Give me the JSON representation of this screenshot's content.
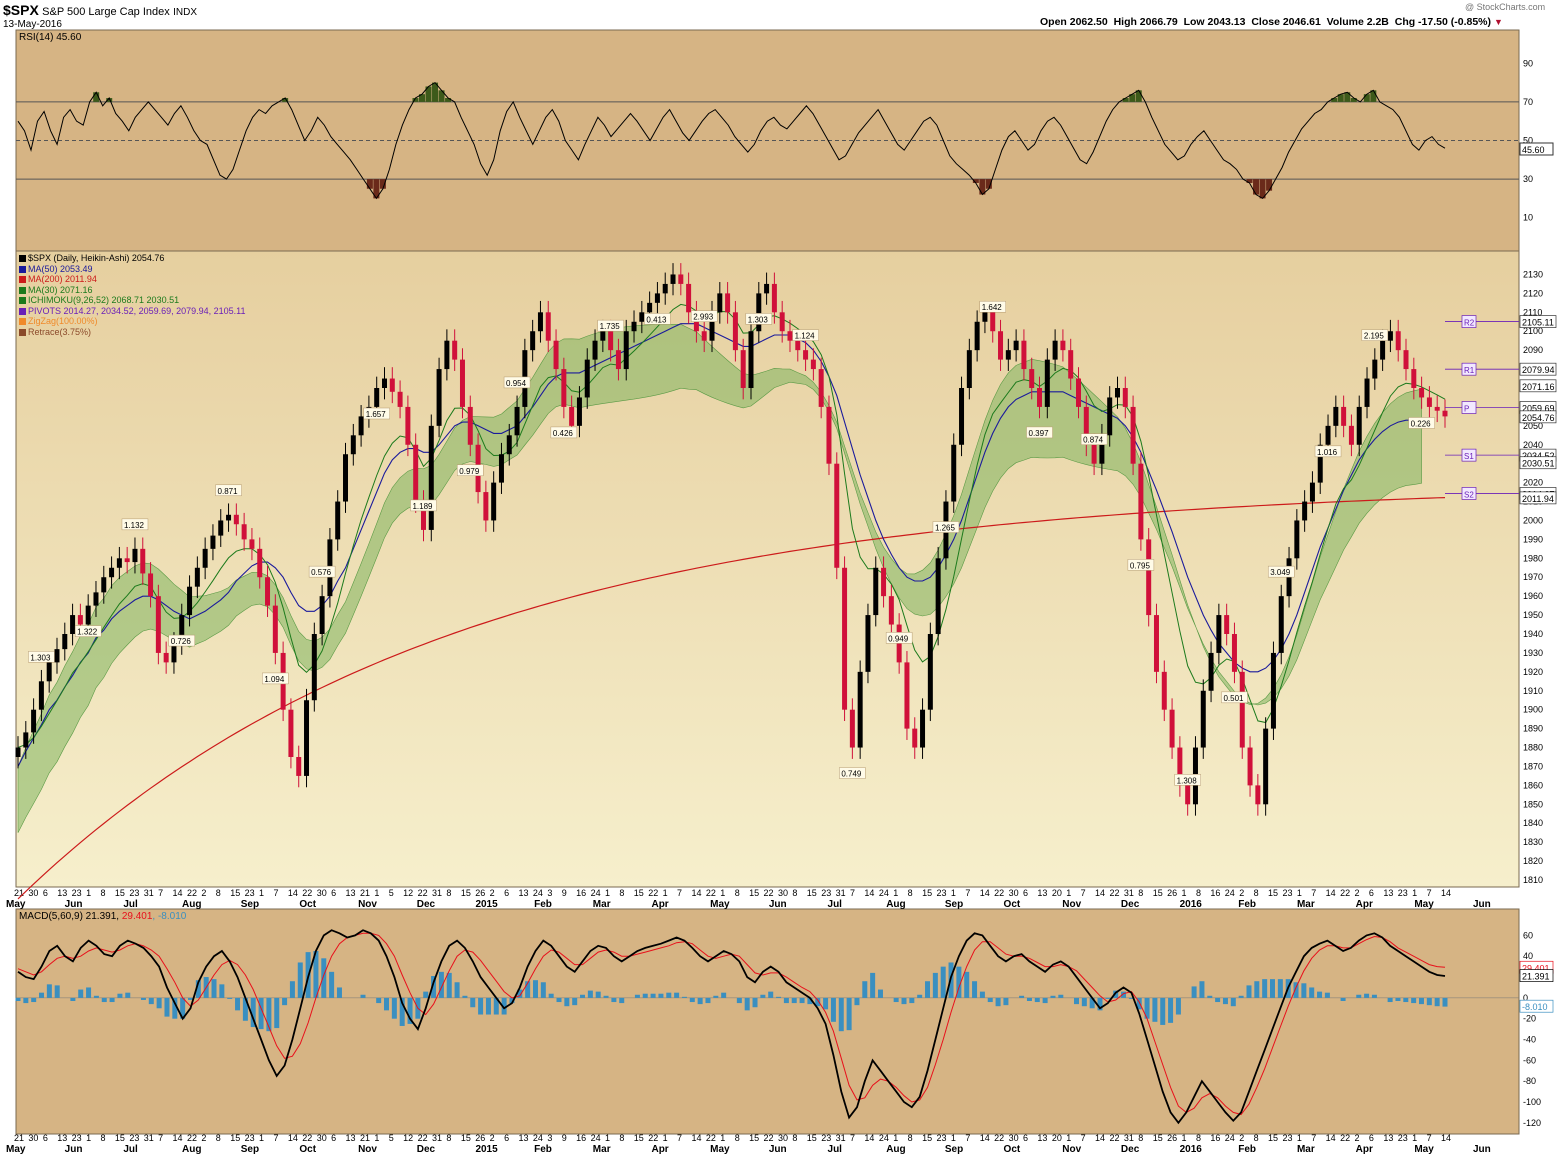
{
  "header": {
    "symbol": "$SPX",
    "name": "S&P 500 Large Cap Index",
    "exchange": "INDX",
    "date": "13-May-2016",
    "open": "Open 2062.50",
    "high": "High 2066.79",
    "low": "Low 2043.13",
    "close": "Close 2046.61",
    "volume": "Volume 2.2B",
    "chg": "Chg -17.50 (-0.85%)",
    "watermark": "@ StockCharts.com"
  },
  "colors": {
    "panel_bg": "#d6b484",
    "price_bg_top": "#e7cfa0",
    "price_bg_bottom": "#f5ecc6",
    "candle_up": "#000000",
    "candle_down": "#d0103a",
    "ma50": "#1a1a9c",
    "ma200": "#cc1b1b",
    "ma30": "#1c7a1c",
    "cloud_green": "#7fb55f",
    "cloud_red": "#e8908a",
    "pivots": "#6a1fb8",
    "zigzag": "#f08a2a",
    "retrace": "#8b4a2a",
    "macd_line": "#000000",
    "signal_line": "#e8101b",
    "histogram": "#3a8fc0"
  },
  "rsi_panel": {
    "label": "RSI(14) 45.60",
    "last_value": "45.60",
    "y_ticks": [
      "90",
      "70",
      "50",
      "30",
      "10"
    ]
  },
  "legend": [
    {
      "text": "$SPX (Daily, Heikin-Ashi) 2054.76",
      "color": "#000000"
    },
    {
      "text": "MA(50) 2053.49",
      "color": "#1a1a9c"
    },
    {
      "text": "MA(200) 2011.94",
      "color": "#cc1b1b"
    },
    {
      "text": "MA(30) 2071.16",
      "color": "#1c7a1c"
    },
    {
      "text": "ICHIMOKU(9,26,52) 2068.71 2030.51",
      "color": "#1c7a1c"
    },
    {
      "text": "PIVOTS 2014.27, 2034.52, 2059.69, 2079.94, 2105.11",
      "color": "#6a1fb8"
    },
    {
      "text": "ZigZag(100.00%)",
      "color": "#f08a2a"
    },
    {
      "text": "Retrace(3.75%)",
      "color": "#8b4a2a"
    }
  ],
  "price_y_ticks": [
    "2130",
    "2120",
    "2110",
    "2100",
    "2090",
    "2080",
    "2070",
    "2060",
    "2050",
    "2040",
    "2030",
    "2020",
    "2010",
    "2000",
    "1990",
    "1980",
    "1970",
    "1960",
    "1950",
    "1940",
    "1930",
    "1920",
    "1910",
    "1900",
    "1890",
    "1880",
    "1870",
    "1860",
    "1850",
    "1840",
    "1830",
    "1820",
    "1810"
  ],
  "price_tags": [
    "2105.11",
    "2079.94",
    "2071.16",
    "2059.69",
    "2054.76",
    "2034.52",
    "2030.51",
    "2014.27",
    "2011.94"
  ],
  "pivot_labels": [
    "R2",
    "R1",
    "P",
    "S1",
    "S2"
  ],
  "retrace_labels": [
    "1.303",
    "1.322",
    "1.132",
    "0.726",
    "0.871",
    "1.094",
    "0.576",
    "1.657",
    "1.189",
    "0.979",
    "0.954",
    "0.426",
    "1.735",
    "0.413",
    "2.993",
    "1.303",
    "1.124",
    "0.749",
    "0.949",
    "1.265",
    "1.642",
    "0.397",
    "0.874",
    "0.795",
    "1.308",
    "0.501",
    "3.049",
    "1.016",
    "2.195",
    "0.226"
  ],
  "x_axis": {
    "day_ticks": [
      "21",
      "30",
      "6",
      "13",
      "23",
      "1",
      "8",
      "15",
      "23",
      "31",
      "7",
      "14",
      "22",
      "2",
      "8",
      "15",
      "23",
      "1",
      "7",
      "14",
      "22",
      "30",
      "6",
      "13",
      "21",
      "1",
      "5",
      "12",
      "22",
      "31",
      "8",
      "15",
      "26",
      "2",
      "6",
      "13",
      "24",
      "3",
      "9",
      "16",
      "24",
      "1",
      "8",
      "15",
      "22",
      "1",
      "7",
      "14",
      "22",
      "1",
      "8",
      "15",
      "22",
      "30",
      "8",
      "15",
      "23",
      "31",
      "7",
      "14",
      "24",
      "1",
      "8",
      "15",
      "23",
      "1",
      "7",
      "14",
      "22",
      "30",
      "6",
      "13",
      "20",
      "1",
      "7",
      "14",
      "22",
      "31",
      "8",
      "15",
      "26",
      "1",
      "8",
      "16",
      "24",
      "2",
      "8",
      "15",
      "23",
      "1",
      "7",
      "14",
      "22",
      "2",
      "6",
      "13",
      "23",
      "1",
      "7",
      "14"
    ],
    "month_labels": [
      "May",
      "Jun",
      "Jul",
      "Aug",
      "Sep",
      "Oct",
      "Nov",
      "Dec",
      "2015",
      "Feb",
      "Mar",
      "Apr",
      "May",
      "Jun",
      "Jul",
      "Aug",
      "Sep",
      "Oct",
      "Nov",
      "Dec",
      "2016",
      "Feb",
      "Mar",
      "Apr",
      "May",
      "Jun"
    ]
  },
  "macd_panel": {
    "label": "MACD(5,60,9) 21.391, 29.401, -8.010",
    "label_parts": [
      "MACD(5,60,9) 21.391, ",
      "29.401",
      ", -8.010"
    ],
    "y_ticks": [
      "60",
      "40",
      "20",
      "0",
      "-20",
      "-40",
      "-60",
      "-80",
      "-100",
      "-120"
    ],
    "tags": [
      "29.401",
      "21.391",
      "-8.010"
    ]
  },
  "chart_data": [
    {
      "type": "line",
      "title": "RSI(14)",
      "ylim": [
        0,
        100
      ],
      "last": 45.6,
      "reference_lines": [
        70,
        50,
        30
      ],
      "x_start": "2014-05-21",
      "x_end": "2016-05-13",
      "values": [
        60,
        55,
        45,
        60,
        65,
        55,
        48,
        62,
        66,
        60,
        58,
        70,
        75,
        68,
        72,
        64,
        60,
        55,
        62,
        66,
        70,
        66,
        62,
        58,
        64,
        68,
        62,
        55,
        50,
        48,
        40,
        32,
        30,
        35,
        45,
        55,
        62,
        66,
        64,
        68,
        70,
        72,
        66,
        58,
        50,
        55,
        62,
        58,
        52,
        48,
        44,
        40,
        35,
        30,
        25,
        20,
        25,
        35,
        48,
        58,
        66,
        72,
        74,
        78,
        80,
        76,
        72,
        70,
        62,
        55,
        48,
        38,
        32,
        40,
        55,
        65,
        70,
        62,
        55,
        48,
        55,
        62,
        66,
        60,
        50,
        45,
        40,
        48,
        55,
        62,
        58,
        52,
        56,
        60,
        64,
        60,
        55,
        50,
        56,
        62,
        66,
        60,
        54,
        50,
        55,
        60,
        64,
        66,
        62,
        58,
        52,
        48,
        44,
        48,
        55,
        60,
        62,
        58,
        56,
        60,
        64,
        68,
        64,
        58,
        52,
        46,
        40,
        42,
        48,
        54,
        58,
        62,
        66,
        60,
        54,
        48,
        45,
        50,
        55,
        60,
        62,
        58,
        50,
        42,
        38,
        35,
        32,
        28,
        22,
        25,
        35,
        45,
        52,
        55,
        50,
        45,
        48,
        55,
        60,
        62,
        58,
        52,
        46,
        40,
        38,
        44,
        52,
        60,
        66,
        70,
        72,
        74,
        76,
        70,
        62,
        55,
        48,
        44,
        40,
        42,
        48,
        52,
        55,
        50,
        45,
        40,
        38,
        35,
        30,
        28,
        22,
        20,
        24,
        30,
        36,
        44,
        50,
        56,
        60,
        64,
        66,
        70,
        72,
        74,
        75,
        72,
        70,
        74,
        76,
        70,
        68,
        66,
        62,
        55,
        48,
        45,
        50,
        52,
        48,
        46
      ]
    },
    {
      "type": "line",
      "title": "$SPX (Daily, Heikin-Ashi)",
      "ylim": [
        1810,
        2135
      ],
      "last": 2054.76,
      "x_start": "2014-05-21",
      "x_end": "2016-05-13",
      "close": [
        1880,
        1888,
        1900,
        1915,
        1925,
        1932,
        1940,
        1950,
        1945,
        1955,
        1962,
        1970,
        1975,
        1980,
        1978,
        1985,
        1972,
        1960,
        1930,
        1925,
        1935,
        1950,
        1965,
        1975,
        1985,
        1992,
        2000,
        2003,
        1998,
        1990,
        1985,
        1970,
        1955,
        1930,
        1900,
        1875,
        1865,
        1905,
        1940,
        1960,
        1990,
        2010,
        2035,
        2045,
        2055,
        2060,
        2070,
        2075,
        2068,
        2060,
        2040,
        2010,
        1995,
        2050,
        2080,
        2095,
        2085,
        2060,
        2040,
        2015,
        2000,
        2020,
        2035,
        2045,
        2060,
        2090,
        2100,
        2110,
        2095,
        2080,
        2060,
        2050,
        2065,
        2085,
        2095,
        2100,
        2090,
        2080,
        2100,
        2105,
        2110,
        2115,
        2120,
        2125,
        2130,
        2125,
        2110,
        2100,
        2095,
        2110,
        2120,
        2110,
        2090,
        2070,
        2100,
        2120,
        2125,
        2110,
        2100,
        2095,
        2090,
        2085,
        2080,
        2060,
        2030,
        1975,
        1900,
        1880,
        1920,
        1950,
        1975,
        1960,
        1945,
        1925,
        1890,
        1880,
        1900,
        1940,
        1980,
        2010,
        2040,
        2070,
        2090,
        2105,
        2110,
        2100,
        2085,
        2090,
        2095,
        2080,
        2070,
        2060,
        2085,
        2095,
        2090,
        2075,
        2060,
        2040,
        2030,
        2045,
        2065,
        2070,
        2060,
        2030,
        1990,
        1950,
        1920,
        1900,
        1880,
        1860,
        1850,
        1880,
        1910,
        1930,
        1950,
        1940,
        1920,
        1880,
        1860,
        1850,
        1890,
        1930,
        1960,
        1980,
        2000,
        2010,
        2020,
        2040,
        2050,
        2060,
        2050,
        2040,
        2060,
        2075,
        2085,
        2095,
        2100,
        2090,
        2080,
        2070,
        2065,
        2060,
        2058,
        2055
      ],
      "ma50": [
        1870,
        1878,
        1885,
        1892,
        1900,
        1905,
        1912,
        1918,
        1925,
        1930,
        1938,
        1942,
        1948,
        1952,
        1955,
        1958,
        1960,
        1960,
        1958,
        1955,
        1952,
        1950,
        1948,
        1950,
        1952,
        1955,
        1958,
        1962,
        1968,
        1972,
        1976,
        1978,
        1978,
        1975,
        1970,
        1962,
        1955,
        1952,
        1952,
        1955,
        1960,
        1968,
        1975,
        1985,
        1995,
        2005,
        2015,
        2025,
        2032,
        2036,
        2038,
        2038,
        2036,
        2036,
        2040,
        2045,
        2050,
        2052,
        2052,
        2050,
        2048,
        2046,
        2046,
        2048,
        2050,
        2055,
        2060,
        2066,
        2072,
        2076,
        2078,
        2078,
        2078,
        2080,
        2082,
        2084,
        2086,
        2088,
        2090,
        2092,
        2094,
        2096,
        2098,
        2100,
        2102,
        2104,
        2104,
        2104,
        2102,
        2100,
        2098,
        2096,
        2094,
        2092,
        2092,
        2094,
        2096,
        2098,
        2098,
        2098,
        2096,
        2094,
        2090,
        2084,
        2076,
        2066,
        2052,
        2038,
        2024,
        2012,
        2000,
        1990,
        1982,
        1975,
        1970,
        1968,
        1968,
        1970,
        1975,
        1982,
        1990,
        2000,
        2012,
        2024,
        2036,
        2046,
        2054,
        2060,
        2064,
        2066,
        2068,
        2068,
        2068,
        2068,
        2068,
        2066,
        2064,
        2062,
        2060,
        2058,
        2056,
        2054,
        2050,
        2044,
        2036,
        2026,
        2016,
        2005,
        1994,
        1982,
        1970,
        1960,
        1950,
        1942,
        1935,
        1930,
        1925,
        1922,
        1920,
        1920,
        1922,
        1926,
        1932,
        1940,
        1950,
        1962,
        1974,
        1986,
        1996,
        2006,
        2016,
        2024,
        2032,
        2038,
        2043,
        2047,
        2050,
        2052,
        2053,
        2053,
        2053
      ]
    },
    {
      "type": "bar",
      "title": "MACD(5,60,9)",
      "ylim": [
        -125,
        70
      ],
      "macd": 21.391,
      "signal": 29.401,
      "histogram": -8.01,
      "x_start": "2014-05-21",
      "x_end": "2016-05-13",
      "macd_values": [
        25,
        20,
        18,
        30,
        45,
        50,
        40,
        35,
        48,
        55,
        50,
        42,
        40,
        50,
        55,
        52,
        48,
        40,
        30,
        10,
        -5,
        -20,
        -10,
        15,
        30,
        40,
        45,
        35,
        20,
        0,
        -20,
        -40,
        -60,
        -75,
        -65,
        -40,
        -10,
        20,
        45,
        60,
        65,
        62,
        58,
        60,
        65,
        62,
        55,
        40,
        20,
        -5,
        -20,
        -30,
        -10,
        15,
        35,
        50,
        55,
        48,
        35,
        20,
        10,
        0,
        -10,
        -5,
        10,
        30,
        45,
        55,
        50,
        40,
        30,
        25,
        35,
        45,
        50,
        48,
        40,
        35,
        40,
        45,
        48,
        50,
        52,
        55,
        58,
        55,
        48,
        40,
        35,
        40,
        45,
        42,
        35,
        20,
        15,
        25,
        30,
        25,
        15,
        10,
        5,
        0,
        -10,
        -25,
        -55,
        -90,
        -115,
        -105,
        -80,
        -60,
        -70,
        -80,
        -90,
        -100,
        -105,
        -95,
        -70,
        -40,
        -10,
        20,
        40,
        55,
        62,
        60,
        50,
        40,
        35,
        40,
        42,
        35,
        30,
        25,
        32,
        35,
        30,
        20,
        10,
        0,
        -10,
        -5,
        5,
        10,
        5,
        -15,
        -40,
        -65,
        -90,
        -110,
        -120,
        -110,
        -95,
        -80,
        -90,
        -100,
        -110,
        -118,
        -110,
        -90,
        -70,
        -50,
        -30,
        -10,
        10,
        25,
        40,
        48,
        52,
        55,
        50,
        45,
        48,
        55,
        60,
        62,
        58,
        50,
        45,
        40,
        35,
        30,
        25,
        22,
        21
      ],
      "signal_values": [
        28,
        25,
        22,
        25,
        32,
        38,
        40,
        38,
        40,
        45,
        48,
        46,
        44,
        46,
        50,
        52,
        50,
        46,
        40,
        28,
        15,
        0,
        -8,
        -2,
        10,
        22,
        32,
        36,
        32,
        22,
        8,
        -10,
        -28,
        -46,
        -58,
        -56,
        -44,
        -24,
        0,
        22,
        40,
        52,
        58,
        60,
        62,
        62,
        60,
        52,
        40,
        22,
        5,
        -10,
        -16,
        -6,
        10,
        26,
        40,
        46,
        44,
        36,
        26,
        16,
        6,
        0,
        2,
        14,
        28,
        40,
        46,
        44,
        38,
        32,
        32,
        38,
        44,
        46,
        44,
        40,
        40,
        42,
        44,
        46,
        48,
        50,
        53,
        54,
        52,
        46,
        40,
        38,
        40,
        42,
        40,
        32,
        24,
        22,
        24,
        24,
        20,
        15,
        10,
        6,
        -2,
        -14,
        -32,
        -58,
        -84,
        -98,
        -96,
        -84,
        -78,
        -80,
        -86,
        -94,
        -100,
        -98,
        -86,
        -64,
        -40,
        -14,
        10,
        30,
        46,
        54,
        54,
        48,
        42,
        40,
        40,
        38,
        34,
        30,
        30,
        32,
        30,
        26,
        18,
        10,
        2,
        -4,
        -2,
        4,
        6,
        -4,
        -20,
        -42,
        -64,
        -86,
        -104,
        -110,
        -106,
        -96,
        -92,
        -96,
        -104,
        -110,
        -112,
        -102,
        -86,
        -68,
        -48,
        -28,
        -8,
        10,
        26,
        38,
        46,
        50,
        50,
        48,
        48,
        52,
        56,
        59,
        58,
        54,
        48,
        44,
        40,
        36,
        32,
        30,
        29.4
      ]
    }
  ]
}
